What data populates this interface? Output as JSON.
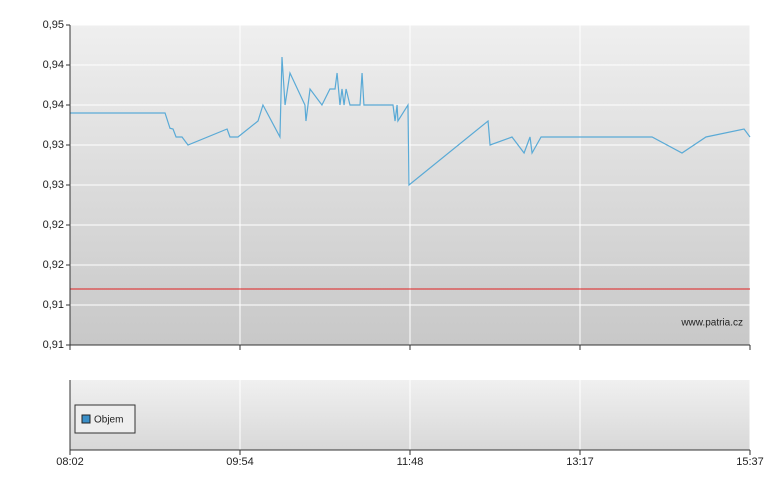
{
  "chart_data": {
    "type": "line",
    "watermark": "www.patria.cz",
    "grid": true,
    "xlim": [
      0,
      4
    ],
    "xticks": [
      {
        "value": 0,
        "label": "08:02"
      },
      {
        "value": 1,
        "label": "09:54"
      },
      {
        "value": 2,
        "label": "11:48"
      },
      {
        "value": 3,
        "label": "13:17"
      },
      {
        "value": 4,
        "label": "15:37"
      }
    ],
    "ylim": [
      0.91,
      0.95
    ],
    "yticks": [
      {
        "value": 0.91,
        "label": "0,91"
      },
      {
        "value": 0.915,
        "label": "0,91"
      },
      {
        "value": 0.92,
        "label": "0,92"
      },
      {
        "value": 0.925,
        "label": "0,92"
      },
      {
        "value": 0.93,
        "label": "0,93"
      },
      {
        "value": 0.935,
        "label": "0,93"
      },
      {
        "value": 0.94,
        "label": "0,94"
      },
      {
        "value": 0.945,
        "label": "0,94"
      },
      {
        "value": 0.95,
        "label": "0,95"
      }
    ],
    "x": [
      0,
      0.559,
      0.588,
      0.606,
      0.624,
      0.659,
      0.694,
      0.924,
      0.941,
      0.988,
      1.106,
      1.135,
      1.235,
      1.247,
      1.265,
      1.294,
      1.382,
      1.388,
      1.412,
      1.482,
      1.529,
      1.559,
      1.571,
      1.588,
      1.6,
      1.612,
      1.624,
      1.647,
      1.706,
      1.718,
      1.729,
      1.9,
      1.912,
      1.924,
      1.929,
      1.988,
      1.994,
      2.459,
      2.471,
      2.6,
      2.671,
      2.706,
      2.718,
      2.771,
      3.424,
      3.6,
      3.741,
      3.965,
      4
    ],
    "series": [
      {
        "color": "#5aaad6",
        "values": [
          0.939,
          0.939,
          0.9371,
          0.937,
          0.936,
          0.936,
          0.935,
          0.937,
          0.936,
          0.936,
          0.938,
          0.94,
          0.936,
          0.946,
          0.94,
          0.944,
          0.94,
          0.938,
          0.942,
          0.94,
          0.942,
          0.942,
          0.944,
          0.94,
          0.942,
          0.94,
          0.942,
          0.94,
          0.94,
          0.944,
          0.94,
          0.94,
          0.938,
          0.94,
          0.938,
          0.94,
          0.93,
          0.938,
          0.935,
          0.936,
          0.934,
          0.936,
          0.934,
          0.936,
          0.936,
          0.934,
          0.936,
          0.937,
          0.936
        ]
      }
    ],
    "reference_line": {
      "value": 0.917,
      "color": "#e02020"
    },
    "volume": {
      "series": [
        {
          "name": "Objem",
          "color": "#3a8fc8"
        }
      ]
    }
  }
}
